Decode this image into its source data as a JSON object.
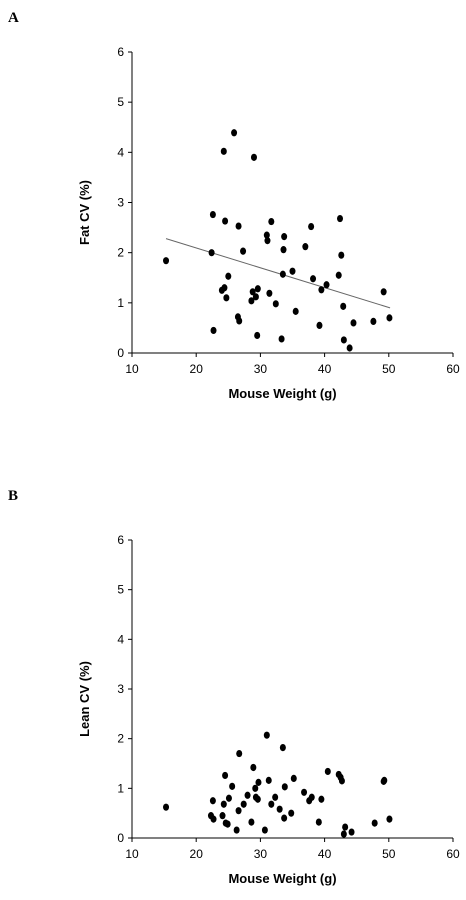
{
  "chart_data": [
    {
      "panel": "A",
      "type": "scatter",
      "xlabel": "Mouse Weight (g)",
      "ylabel": "Fat CV (%)",
      "xlim": [
        10,
        60
      ],
      "ylim": [
        0,
        6
      ],
      "xticks": [
        "10",
        "20",
        "30",
        "40",
        "50",
        "60"
      ],
      "yticks": [
        "0",
        "1",
        "2",
        "3",
        "4",
        "5",
        "6"
      ],
      "grid": false,
      "trendline": [
        [
          15.3,
          2.28
        ],
        [
          50.2,
          0.9
        ]
      ],
      "points": [
        [
          15.3,
          1.84
        ],
        [
          22.4,
          2.0
        ],
        [
          22.6,
          2.76
        ],
        [
          22.7,
          0.45
        ],
        [
          24.0,
          1.25
        ],
        [
          24.3,
          4.02
        ],
        [
          24.4,
          1.3
        ],
        [
          24.5,
          2.63
        ],
        [
          24.7,
          1.1
        ],
        [
          25.0,
          1.53
        ],
        [
          25.9,
          4.39
        ],
        [
          26.5,
          0.72
        ],
        [
          26.6,
          2.53
        ],
        [
          26.7,
          0.64
        ],
        [
          27.3,
          2.03
        ],
        [
          28.6,
          1.04
        ],
        [
          28.8,
          1.22
        ],
        [
          29.0,
          3.9
        ],
        [
          29.3,
          1.12
        ],
        [
          29.5,
          0.35
        ],
        [
          29.6,
          1.28
        ],
        [
          31.0,
          2.35
        ],
        [
          31.1,
          2.24
        ],
        [
          31.4,
          1.19
        ],
        [
          31.7,
          2.62
        ],
        [
          32.4,
          0.98
        ],
        [
          33.3,
          0.28
        ],
        [
          33.5,
          1.57
        ],
        [
          33.6,
          2.06
        ],
        [
          33.7,
          2.32
        ],
        [
          35.0,
          1.63
        ],
        [
          35.5,
          0.83
        ],
        [
          37.0,
          2.12
        ],
        [
          37.9,
          2.52
        ],
        [
          38.2,
          1.48
        ],
        [
          39.2,
          0.55
        ],
        [
          39.5,
          1.26
        ],
        [
          40.3,
          1.36
        ],
        [
          42.2,
          1.55
        ],
        [
          42.4,
          2.68
        ],
        [
          42.6,
          1.95
        ],
        [
          42.9,
          0.93
        ],
        [
          43.0,
          0.26
        ],
        [
          43.9,
          0.1
        ],
        [
          44.5,
          0.6
        ],
        [
          47.6,
          0.63
        ],
        [
          49.2,
          1.22
        ],
        [
          50.1,
          0.7
        ]
      ]
    },
    {
      "panel": "B",
      "type": "scatter",
      "xlabel": "Mouse Weight (g)",
      "ylabel": "Lean CV (%)",
      "xlim": [
        10,
        60
      ],
      "ylim": [
        0,
        6
      ],
      "xticks": [
        "10",
        "20",
        "30",
        "40",
        "50",
        "60"
      ],
      "yticks": [
        "0",
        "1",
        "2",
        "3",
        "4",
        "5",
        "6"
      ],
      "grid": false,
      "points": [
        [
          15.3,
          0.62
        ],
        [
          22.3,
          0.45
        ],
        [
          22.6,
          0.75
        ],
        [
          22.7,
          0.38
        ],
        [
          24.1,
          0.45
        ],
        [
          24.3,
          0.68
        ],
        [
          24.5,
          1.26
        ],
        [
          24.6,
          0.3
        ],
        [
          24.9,
          0.28
        ],
        [
          25.1,
          0.8
        ],
        [
          25.6,
          1.04
        ],
        [
          26.3,
          0.16
        ],
        [
          26.6,
          0.55
        ],
        [
          26.7,
          1.7
        ],
        [
          27.4,
          0.68
        ],
        [
          28.0,
          0.86
        ],
        [
          28.6,
          0.32
        ],
        [
          28.9,
          1.42
        ],
        [
          29.2,
          1.0
        ],
        [
          29.3,
          0.82
        ],
        [
          29.6,
          0.78
        ],
        [
          29.7,
          1.12
        ],
        [
          30.7,
          0.16
        ],
        [
          31.0,
          2.07
        ],
        [
          31.3,
          1.16
        ],
        [
          31.7,
          0.68
        ],
        [
          32.3,
          0.82
        ],
        [
          33.0,
          0.58
        ],
        [
          33.5,
          1.82
        ],
        [
          33.7,
          0.4
        ],
        [
          33.8,
          1.03
        ],
        [
          34.8,
          0.5
        ],
        [
          35.2,
          1.2
        ],
        [
          36.8,
          0.92
        ],
        [
          37.6,
          0.75
        ],
        [
          38.0,
          0.82
        ],
        [
          39.1,
          0.32
        ],
        [
          39.5,
          0.78
        ],
        [
          40.5,
          1.34
        ],
        [
          42.2,
          1.28
        ],
        [
          42.5,
          1.22
        ],
        [
          42.7,
          1.15
        ],
        [
          43.0,
          0.08
        ],
        [
          43.2,
          0.22
        ],
        [
          44.2,
          0.12
        ],
        [
          47.8,
          0.3
        ],
        [
          49.2,
          1.14
        ],
        [
          49.3,
          1.16
        ],
        [
          50.1,
          0.38
        ]
      ]
    }
  ]
}
